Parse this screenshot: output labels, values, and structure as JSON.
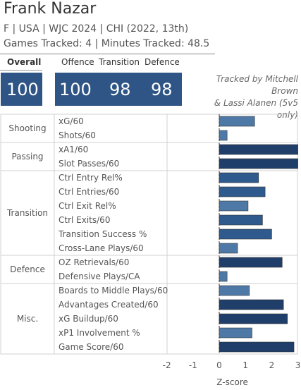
{
  "player": {
    "name": "Frank Nazar",
    "info_line": "F | USA | WJC 2024 | CHI (2022, 13th)",
    "tracking_line": "Games Tracked: 4 | Minutes Tracked: 48.5"
  },
  "tabs": {
    "overall": "Overall",
    "offence": "Offence",
    "transition": "Transition",
    "defence": "Defence"
  },
  "scores": {
    "overall": "100",
    "offence": "100",
    "transition": "98",
    "defence": "98"
  },
  "credit": {
    "line1": "Tracked by Mitchell Brown",
    "line2": "& Lassi Alanen (5v5 only)"
  },
  "colors": {
    "box": "#2e5585",
    "bar_light": "#4e79a7",
    "bar_mid": "#2e5a8e",
    "bar_dark": "#1f3f6a"
  },
  "chart_data": {
    "type": "bar",
    "orientation": "horizontal",
    "xlabel": "Z-score",
    "xlim": [
      -2,
      3
    ],
    "xticks": [
      "-2",
      "-1",
      "0",
      "1",
      "2",
      "3"
    ],
    "groups": [
      {
        "name": "Shooting",
        "metrics": [
          {
            "label": "xG/60",
            "value": 1.35
          },
          {
            "label": "Shots/60",
            "value": 0.3
          }
        ]
      },
      {
        "name": "Passing",
        "metrics": [
          {
            "label": "xA1/60",
            "value": 3.0
          },
          {
            "label": "Slot Passes/60",
            "value": 3.0
          }
        ]
      },
      {
        "name": "Transition",
        "metrics": [
          {
            "label": "Ctrl Entry Rel%",
            "value": 1.5
          },
          {
            "label": "Ctrl Entries/60",
            "value": 1.75
          },
          {
            "label": "Ctrl Exit Rel%",
            "value": 1.1
          },
          {
            "label": "Ctrl Exits/60",
            "value": 1.65
          },
          {
            "label": "Transition Success %",
            "value": 2.0
          },
          {
            "label": "Cross-Lane Plays/60",
            "value": 0.7
          }
        ]
      },
      {
        "name": "Defence",
        "metrics": [
          {
            "label": "OZ Retrievals/60",
            "value": 2.4
          },
          {
            "label": "Defensive Plays/CA",
            "value": 0.3
          }
        ]
      },
      {
        "name": "Misc.",
        "metrics": [
          {
            "label": "Boards to Middle Plays/60",
            "value": 1.15
          },
          {
            "label": "Advantages Created/60",
            "value": 2.45
          },
          {
            "label": "xG Buildup/60",
            "value": 2.6
          },
          {
            "label": "xP1 Involvement %",
            "value": 1.25
          },
          {
            "label": "Game Score/60",
            "value": 2.85
          }
        ]
      }
    ]
  }
}
